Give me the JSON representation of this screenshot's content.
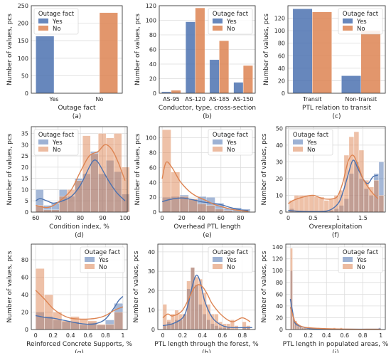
{
  "colors": {
    "yes": "#4C72B0",
    "no": "#DD8452",
    "grid": "#DCDCDC",
    "axis": "#262626"
  },
  "legend_title": "Outage fact",
  "chart_data": [
    {
      "type": "bar",
      "xlabel": "Outage fact",
      "ylabel": "Number of values, pcs",
      "caption": "(a)",
      "categories": [
        "Yes",
        "No"
      ],
      "series": [
        {
          "name": "Yes",
          "values": [
            163,
            0
          ]
        },
        {
          "name": "No",
          "values": [
            0,
            230
          ]
        }
      ],
      "ylim": [
        0,
        250
      ],
      "yticks": [
        0,
        50,
        100,
        150,
        200,
        250
      ],
      "grid": true,
      "legend": "top-left"
    },
    {
      "type": "bar",
      "xlabel": "Conductor, type, cross-section",
      "ylabel": "Number of values, pcs",
      "caption": "(b)",
      "categories": [
        "AS-95",
        "AS-120",
        "AS-185",
        "AS-150"
      ],
      "series": [
        {
          "name": "Yes",
          "values": [
            2,
            98,
            46,
            15
          ]
        },
        {
          "name": "No",
          "values": [
            4,
            117,
            72,
            38
          ]
        }
      ],
      "ylim": [
        0,
        120
      ],
      "yticks": [
        0,
        20,
        40,
        60,
        80,
        100,
        120
      ],
      "grid": true,
      "legend": "top-right"
    },
    {
      "type": "bar",
      "xlabel": "PTL relation to transit",
      "ylabel": "Number of values, pcs",
      "caption": "(c)",
      "categories": [
        "Transit",
        "Non-transit"
      ],
      "series": [
        {
          "name": "Yes",
          "values": [
            135,
            28
          ]
        },
        {
          "name": "No",
          "values": [
            130,
            100
          ]
        }
      ],
      "ylim": [
        0,
        140
      ],
      "yticks": [
        0,
        20,
        40,
        60,
        80,
        100,
        120
      ],
      "grid": true,
      "legend": "top-right"
    },
    {
      "type": "histogram",
      "xlabel": "Condition index, %",
      "ylabel": "Number of values, pcs",
      "caption": "(d)",
      "bin_start": 60,
      "bin_width": 3.5,
      "xlim": [
        58,
        101
      ],
      "ylim": [
        0,
        38
      ],
      "xticks": [
        60,
        70,
        80,
        90,
        100
      ],
      "yticks": [
        0,
        5,
        10,
        15,
        20,
        25,
        30,
        35
      ],
      "series": [
        {
          "name": "Yes",
          "values": [
            10,
            3,
            4,
            10,
            7,
            15,
            17,
            27,
            17,
            23,
            18,
            8
          ]
        },
        {
          "name": "No",
          "values": [
            3,
            1,
            1,
            7,
            10,
            14,
            34,
            26,
            35,
            33,
            35,
            20
          ]
        }
      ],
      "kde": [
        {
          "series": "Yes",
          "x": [
            60,
            62,
            65,
            68,
            72,
            76,
            80,
            84,
            86,
            88,
            92,
            96,
            100
          ],
          "y": [
            5,
            6,
            5,
            4,
            5,
            7,
            12,
            20,
            23,
            22,
            15,
            9,
            5
          ]
        },
        {
          "series": "No",
          "x": [
            60,
            62,
            65,
            68,
            72,
            76,
            80,
            84,
            88,
            91,
            94,
            97,
            100
          ],
          "y": [
            3,
            2.5,
            2,
            3,
            6,
            10,
            18,
            25,
            27,
            30,
            28,
            22,
            14
          ]
        }
      ],
      "grid": true,
      "legend": "top-left"
    },
    {
      "type": "histogram",
      "xlabel": "Overhead PTL length",
      "ylabel": "Number of values, pcs",
      "caption": "(e)",
      "bin_start": 0,
      "bin_width": 9,
      "xlim": [
        -3,
        95
      ],
      "ylim": [
        0,
        115
      ],
      "xticks": [
        0,
        20,
        40,
        60,
        80
      ],
      "yticks": [
        0,
        20,
        40,
        60,
        80,
        100
      ],
      "series": [
        {
          "name": "Yes",
          "values": [
            20,
            21,
            23,
            17,
            21,
            20,
            12,
            5,
            6,
            4
          ]
        },
        {
          "name": "No",
          "values": [
            111,
            54,
            21,
            18,
            11,
            9,
            4,
            2,
            1,
            1
          ]
        }
      ],
      "kde": [
        {
          "series": "Yes",
          "x": [
            0,
            5,
            12,
            20,
            30,
            40,
            50,
            60,
            70,
            80,
            88
          ],
          "y": [
            14,
            16,
            18,
            19,
            17,
            14,
            12,
            10,
            6,
            3,
            2
          ]
        },
        {
          "series": "No",
          "x": [
            0,
            4,
            10,
            18,
            26,
            34,
            44,
            54,
            64,
            74,
            88
          ],
          "y": [
            45,
            67,
            60,
            42,
            30,
            22,
            16,
            10,
            6,
            3,
            1
          ]
        }
      ],
      "grid": true,
      "legend": "top-right"
    },
    {
      "type": "histogram",
      "xlabel": "Overexploitation",
      "ylabel": "Number of values, pcs",
      "caption": "(f)",
      "bin_start": 0.02,
      "bin_width": 0.1,
      "xlim": [
        -0.05,
        1.95
      ],
      "ylim": [
        0,
        51
      ],
      "xticks": [
        0.0,
        0.5,
        1.0,
        1.5
      ],
      "yticks": [
        0,
        10,
        20,
        30,
        40,
        50
      ],
      "series": [
        {
          "name": "Yes",
          "values": [
            2,
            0,
            0,
            0,
            0,
            0,
            0,
            0,
            1,
            2,
            4,
            8,
            23,
            30,
            20,
            14,
            10,
            23,
            30
          ]
        },
        {
          "name": "No",
          "values": [
            7,
            10,
            10,
            10,
            10,
            9,
            9,
            7,
            8,
            10,
            13,
            34,
            45,
            48,
            37,
            19,
            15,
            19,
            10
          ]
        }
      ],
      "kde": [
        {
          "series": "Yes",
          "x": [
            0.0,
            0.2,
            0.5,
            0.8,
            1.0,
            1.1,
            1.2,
            1.3,
            1.4,
            1.5,
            1.6,
            1.7,
            1.8
          ],
          "y": [
            1,
            0.5,
            0.3,
            0.8,
            5,
            12,
            22,
            31,
            26,
            20,
            17,
            21,
            22
          ]
        },
        {
          "series": "No",
          "x": [
            0.0,
            0.1,
            0.3,
            0.5,
            0.7,
            0.9,
            1.0,
            1.1,
            1.2,
            1.3,
            1.4,
            1.5,
            1.65,
            1.8
          ],
          "y": [
            5,
            7,
            9,
            10,
            8,
            8,
            10,
            18,
            30,
            34,
            28,
            20,
            13,
            8
          ]
        }
      ],
      "grid": true,
      "legend": "top-left"
    },
    {
      "type": "histogram",
      "xlabel": "Reinforced Concrete Supports, %",
      "ylabel": "Number of values, pcs",
      "caption": "(g)",
      "bin_start": 0,
      "bin_width": 0.1,
      "xlim": [
        -0.05,
        1.05
      ],
      "ylim": [
        0,
        98
      ],
      "xticks": [
        0.0,
        0.2,
        0.4,
        0.6,
        0.8,
        1.0
      ],
      "yticks": [
        0,
        20,
        40,
        60,
        80
      ],
      "series": [
        {
          "name": "Yes",
          "values": [
            20,
            15,
            11,
            9,
            9,
            5,
            8,
            5,
            11,
            30
          ]
        },
        {
          "name": "No",
          "values": [
            70,
            40,
            20,
            10,
            15,
            12,
            10,
            6,
            6,
            20
          ]
        }
      ],
      "kde": [
        {
          "series": "Yes",
          "x": [
            0.0,
            0.1,
            0.2,
            0.3,
            0.4,
            0.5,
            0.6,
            0.7,
            0.8,
            0.9,
            0.95,
            1.0
          ],
          "y": [
            16,
            14,
            13,
            11,
            9,
            7,
            6,
            7,
            12,
            25,
            33,
            38
          ]
        },
        {
          "series": "No",
          "x": [
            0.0,
            0.1,
            0.2,
            0.3,
            0.4,
            0.5,
            0.6,
            0.7,
            0.8,
            0.9,
            1.0
          ],
          "y": [
            45,
            35,
            24,
            17,
            13,
            12,
            12,
            13,
            16,
            22,
            26
          ]
        }
      ],
      "grid": true,
      "legend": "top-right"
    },
    {
      "type": "histogram",
      "xlabel": "PTL length through the forest, %",
      "ylabel": "Number of values, pcs",
      "caption": "(h)",
      "bin_start": 0,
      "bin_width": 0.04,
      "xlim": [
        -0.05,
        0.93
      ],
      "ylim": [
        0,
        44
      ],
      "xticks": [
        0.0,
        0.2,
        0.4,
        0.6,
        0.8
      ],
      "yticks": [
        0,
        10,
        20,
        30,
        40
      ],
      "series": [
        {
          "name": "Yes",
          "values": [
            2,
            4,
            3,
            5,
            5,
            8,
            21,
            32,
            23,
            13,
            8,
            5,
            3,
            2,
            1,
            1,
            1,
            0,
            0,
            0,
            1,
            1
          ]
        },
        {
          "name": "No",
          "values": [
            13,
            5,
            8,
            10,
            8,
            8,
            25,
            32,
            27,
            26,
            19,
            13,
            8,
            8,
            4,
            3,
            3,
            5,
            2,
            0,
            4,
            2
          ]
        }
      ],
      "kde": [
        {
          "series": "Yes",
          "x": [
            0.0,
            0.1,
            0.2,
            0.25,
            0.3,
            0.34,
            0.38,
            0.42,
            0.5,
            0.6,
            0.7,
            0.8,
            0.9
          ],
          "y": [
            2,
            3,
            6,
            12,
            23,
            28,
            24,
            15,
            6,
            2,
            1,
            1,
            1
          ]
        },
        {
          "series": "No",
          "x": [
            0.0,
            0.05,
            0.1,
            0.2,
            0.3,
            0.35,
            0.4,
            0.45,
            0.5,
            0.6,
            0.7,
            0.8,
            0.88
          ],
          "y": [
            6,
            8,
            7,
            10,
            20,
            23,
            22,
            18,
            13,
            7,
            4,
            6,
            4
          ]
        }
      ],
      "grid": true,
      "legend": "top-right"
    },
    {
      "type": "histogram",
      "xlabel": "PTL length in populated areas, %",
      "ylabel": "Number of values, pcs",
      "caption": "(i)",
      "bin_start": 0,
      "bin_width": 0.025,
      "xlim": [
        -0.05,
        1.05
      ],
      "ylim": [
        0,
        145
      ],
      "xticks": [
        0.0,
        0.2,
        0.4,
        0.6,
        0.8,
        1.0
      ],
      "yticks": [
        0,
        20,
        40,
        60,
        80,
        100,
        120,
        140
      ],
      "series": [
        {
          "name": "Yes",
          "values": [
            100,
            18,
            10,
            6,
            5,
            4,
            3,
            0,
            3,
            0,
            0,
            0,
            0,
            0,
            0,
            0,
            0,
            0,
            0,
            0,
            0,
            0,
            0,
            0,
            0,
            0,
            0,
            0,
            0,
            0,
            0,
            0,
            0,
            0,
            0,
            0,
            0,
            0,
            0,
            3
          ]
        },
        {
          "name": "No",
          "values": [
            138,
            20,
            15,
            8,
            6,
            3,
            4,
            3,
            0,
            0,
            0,
            0,
            3,
            0,
            0,
            0,
            0,
            0,
            0,
            3,
            0,
            0,
            3,
            0,
            0,
            0,
            0,
            0,
            0,
            0,
            0,
            0,
            0,
            0,
            0,
            0,
            0,
            0,
            0,
            0
          ]
        }
      ],
      "kde": [
        {
          "series": "Yes",
          "x": [
            0.0,
            0.02,
            0.05,
            0.1,
            0.15,
            0.2,
            0.3,
            0.5,
            0.7,
            0.9,
            1.0
          ],
          "y": [
            52,
            35,
            12,
            6,
            4,
            2,
            1,
            0.5,
            0.5,
            0.5,
            0.5
          ]
        },
        {
          "series": "No",
          "x": [
            0.0,
            0.02,
            0.05,
            0.1,
            0.15,
            0.2,
            0.3,
            0.5,
            0.7,
            0.9,
            1.0
          ],
          "y": [
            38,
            28,
            14,
            7,
            4,
            3,
            2,
            1,
            0.5,
            0.5,
            0.5
          ]
        }
      ],
      "grid": true,
      "legend": "top-right"
    }
  ]
}
